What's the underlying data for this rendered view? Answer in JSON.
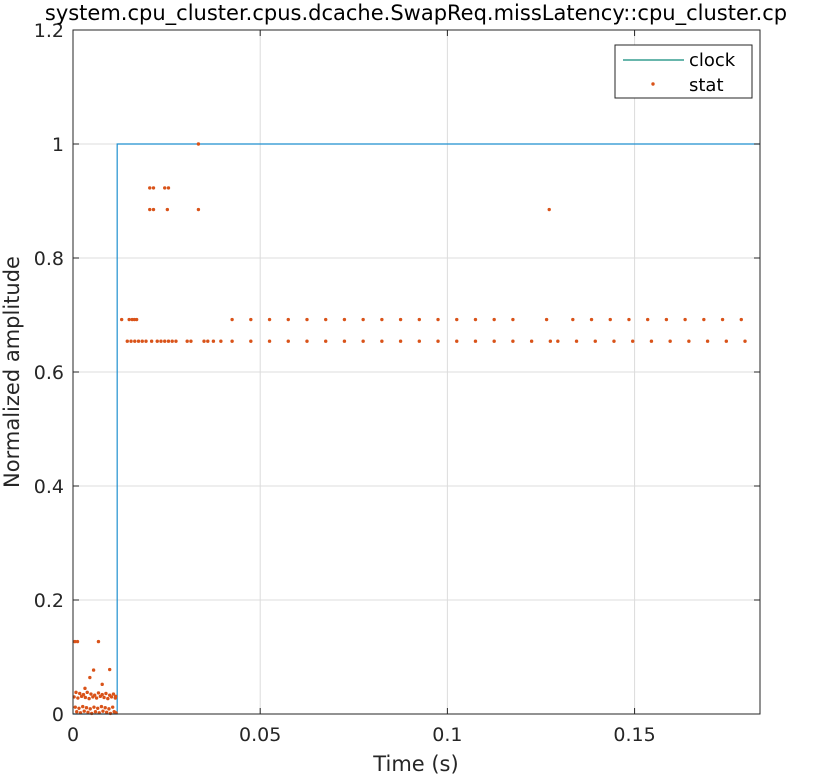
{
  "chart_data": {
    "type": "line",
    "title": "system.cpu_cluster.cpus.dcache.SwapReq.missLatency::cpu_cluster.cp",
    "xlabel": "Time (s)",
    "ylabel": "Normalized amplitude",
    "xlim": [
      0,
      0.1835
    ],
    "ylim": [
      0,
      1.2
    ],
    "xticks": [
      0,
      0.05,
      0.1,
      0.15
    ],
    "xtick_labels": [
      "0",
      "0.05",
      "0.1",
      "0.15"
    ],
    "yticks": [
      0,
      0.2,
      0.4,
      0.6,
      0.8,
      1.0,
      1.2
    ],
    "ytick_labels": [
      "0",
      "0.2",
      "0.4",
      "0.6",
      "0.8",
      "1",
      "1.2"
    ],
    "grid": true,
    "legend_position": "top-right",
    "colors": {
      "clock": "#1f8fcf",
      "clock_legend": "#0f8a7a",
      "stat": "#d95319"
    },
    "series": [
      {
        "name": "clock",
        "kind": "step-line",
        "x": [
          0,
          0.0118,
          0.0118,
          0.1835
        ],
        "y": [
          0,
          0,
          1,
          1
        ]
      },
      {
        "name": "stat",
        "kind": "scatter",
        "points": [
          [
            0.0005,
            0.127
          ],
          [
            0.0012,
            0.127
          ],
          [
            0.0068,
            0.127
          ],
          [
            0.0045,
            0.064
          ],
          [
            0.0055,
            0.077
          ],
          [
            0.0098,
            0.078
          ],
          [
            0.0078,
            0.052
          ],
          [
            0.0032,
            0.045
          ],
          [
            0.0008,
            0.038
          ],
          [
            0.0018,
            0.036
          ],
          [
            0.0028,
            0.034
          ],
          [
            0.0038,
            0.038
          ],
          [
            0.0048,
            0.035
          ],
          [
            0.0058,
            0.033
          ],
          [
            0.0068,
            0.037
          ],
          [
            0.0078,
            0.034
          ],
          [
            0.0088,
            0.036
          ],
          [
            0.0098,
            0.033
          ],
          [
            0.0108,
            0.035
          ],
          [
            0.0114,
            0.031
          ],
          [
            0.0003,
            0.03
          ],
          [
            0.0013,
            0.028
          ],
          [
            0.0023,
            0.031
          ],
          [
            0.0033,
            0.029
          ],
          [
            0.0043,
            0.027
          ],
          [
            0.0053,
            0.03
          ],
          [
            0.0063,
            0.028
          ],
          [
            0.0073,
            0.031
          ],
          [
            0.0083,
            0.029
          ],
          [
            0.0093,
            0.027
          ],
          [
            0.0103,
            0.03
          ],
          [
            0.0113,
            0.028
          ],
          [
            0.0006,
            0.012
          ],
          [
            0.0016,
            0.01
          ],
          [
            0.0026,
            0.013
          ],
          [
            0.0036,
            0.011
          ],
          [
            0.0046,
            0.009
          ],
          [
            0.0056,
            0.012
          ],
          [
            0.0066,
            0.01
          ],
          [
            0.0076,
            0.013
          ],
          [
            0.0086,
            0.011
          ],
          [
            0.0096,
            0.009
          ],
          [
            0.0106,
            0.012
          ],
          [
            0.001,
            0.004
          ],
          [
            0.002,
            0.002
          ],
          [
            0.003,
            0.005
          ],
          [
            0.004,
            0.003
          ],
          [
            0.005,
            0.001
          ],
          [
            0.006,
            0.004
          ],
          [
            0.007,
            0.002
          ],
          [
            0.008,
            0.005
          ],
          [
            0.009,
            0.003
          ],
          [
            0.01,
            0.001
          ],
          [
            0.011,
            0.004
          ],
          [
            0.0115,
            0.002
          ],
          [
            0.013,
            0.692
          ],
          [
            0.015,
            0.692
          ],
          [
            0.0158,
            0.692
          ],
          [
            0.0164,
            0.692
          ],
          [
            0.017,
            0.692
          ],
          [
            0.0145,
            0.654
          ],
          [
            0.0155,
            0.654
          ],
          [
            0.0165,
            0.654
          ],
          [
            0.0175,
            0.654
          ],
          [
            0.0185,
            0.654
          ],
          [
            0.0195,
            0.654
          ],
          [
            0.021,
            0.654
          ],
          [
            0.0225,
            0.654
          ],
          [
            0.0235,
            0.654
          ],
          [
            0.0245,
            0.654
          ],
          [
            0.0255,
            0.654
          ],
          [
            0.0265,
            0.654
          ],
          [
            0.0275,
            0.654
          ],
          [
            0.0305,
            0.654
          ],
          [
            0.0315,
            0.654
          ],
          [
            0.035,
            0.654
          ],
          [
            0.036,
            0.654
          ],
          [
            0.0375,
            0.654
          ],
          [
            0.0395,
            0.654
          ],
          [
            0.0205,
            0.923
          ],
          [
            0.0215,
            0.923
          ],
          [
            0.0245,
            0.923
          ],
          [
            0.0255,
            0.923
          ],
          [
            0.0205,
            0.885
          ],
          [
            0.0215,
            0.885
          ],
          [
            0.0252,
            0.885
          ],
          [
            0.0335,
            0.885
          ],
          [
            0.1272,
            0.885
          ],
          [
            0.0335,
            1.0
          ],
          [
            0.0425,
            0.692
          ],
          [
            0.0475,
            0.692
          ],
          [
            0.0525,
            0.692
          ],
          [
            0.0575,
            0.692
          ],
          [
            0.0625,
            0.692
          ],
          [
            0.0675,
            0.692
          ],
          [
            0.0725,
            0.692
          ],
          [
            0.0775,
            0.692
          ],
          [
            0.0825,
            0.692
          ],
          [
            0.0875,
            0.692
          ],
          [
            0.0925,
            0.692
          ],
          [
            0.0975,
            0.692
          ],
          [
            0.1025,
            0.692
          ],
          [
            0.1075,
            0.692
          ],
          [
            0.1125,
            0.692
          ],
          [
            0.1175,
            0.692
          ],
          [
            0.1265,
            0.692
          ],
          [
            0.1335,
            0.692
          ],
          [
            0.1385,
            0.692
          ],
          [
            0.1435,
            0.692
          ],
          [
            0.1485,
            0.692
          ],
          [
            0.1535,
            0.692
          ],
          [
            0.1585,
            0.692
          ],
          [
            0.1635,
            0.692
          ],
          [
            0.1685,
            0.692
          ],
          [
            0.1735,
            0.692
          ],
          [
            0.1785,
            0.692
          ],
          [
            0.0425,
            0.654
          ],
          [
            0.0475,
            0.654
          ],
          [
            0.0525,
            0.654
          ],
          [
            0.0575,
            0.654
          ],
          [
            0.0625,
            0.654
          ],
          [
            0.0675,
            0.654
          ],
          [
            0.0725,
            0.654
          ],
          [
            0.0775,
            0.654
          ],
          [
            0.0825,
            0.654
          ],
          [
            0.0875,
            0.654
          ],
          [
            0.0925,
            0.654
          ],
          [
            0.0975,
            0.654
          ],
          [
            0.1025,
            0.654
          ],
          [
            0.1075,
            0.654
          ],
          [
            0.1125,
            0.654
          ],
          [
            0.1175,
            0.654
          ],
          [
            0.1225,
            0.654
          ],
          [
            0.1275,
            0.654
          ],
          [
            0.1295,
            0.654
          ],
          [
            0.1345,
            0.654
          ],
          [
            0.1395,
            0.654
          ],
          [
            0.1445,
            0.654
          ],
          [
            0.1495,
            0.654
          ],
          [
            0.1545,
            0.654
          ],
          [
            0.1595,
            0.654
          ],
          [
            0.1645,
            0.654
          ],
          [
            0.1695,
            0.654
          ],
          [
            0.1745,
            0.654
          ],
          [
            0.1795,
            0.654
          ]
        ]
      }
    ]
  }
}
